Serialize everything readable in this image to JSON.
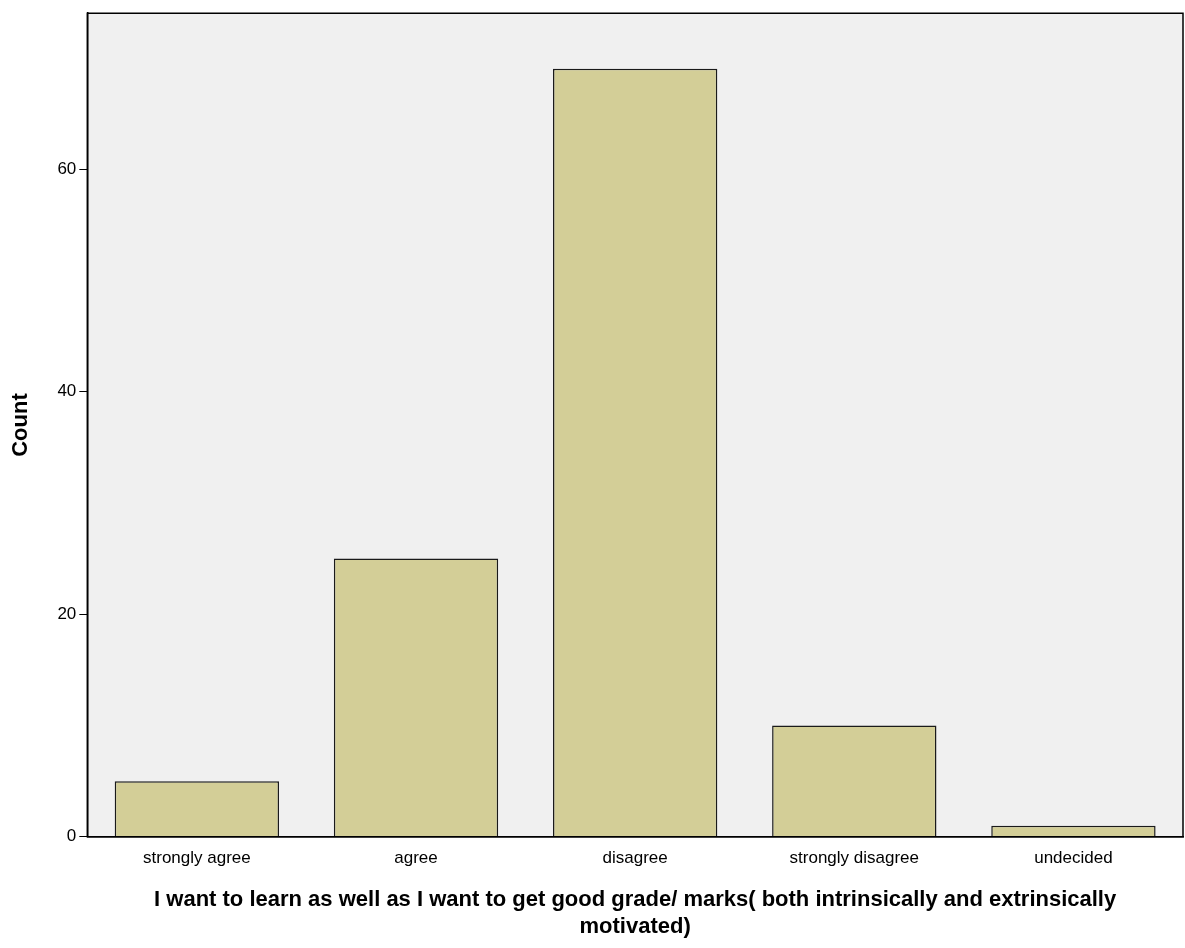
{
  "chart_data": {
    "type": "bar",
    "xlabel": "I want to learn as well as I want to get good grade/ marks( both intrinsically and extrinsically motivated)",
    "ylabel": "Count",
    "categories": [
      "strongly agree",
      "agree",
      "disagree",
      "strongly disagree",
      "undecided"
    ],
    "values": [
      5,
      25,
      69,
      10,
      1
    ],
    "color": "#d3ce97",
    "ylim": [
      0,
      74
    ],
    "yticks": [
      0,
      20,
      40,
      60
    ],
    "grid": false,
    "legend": false
  }
}
